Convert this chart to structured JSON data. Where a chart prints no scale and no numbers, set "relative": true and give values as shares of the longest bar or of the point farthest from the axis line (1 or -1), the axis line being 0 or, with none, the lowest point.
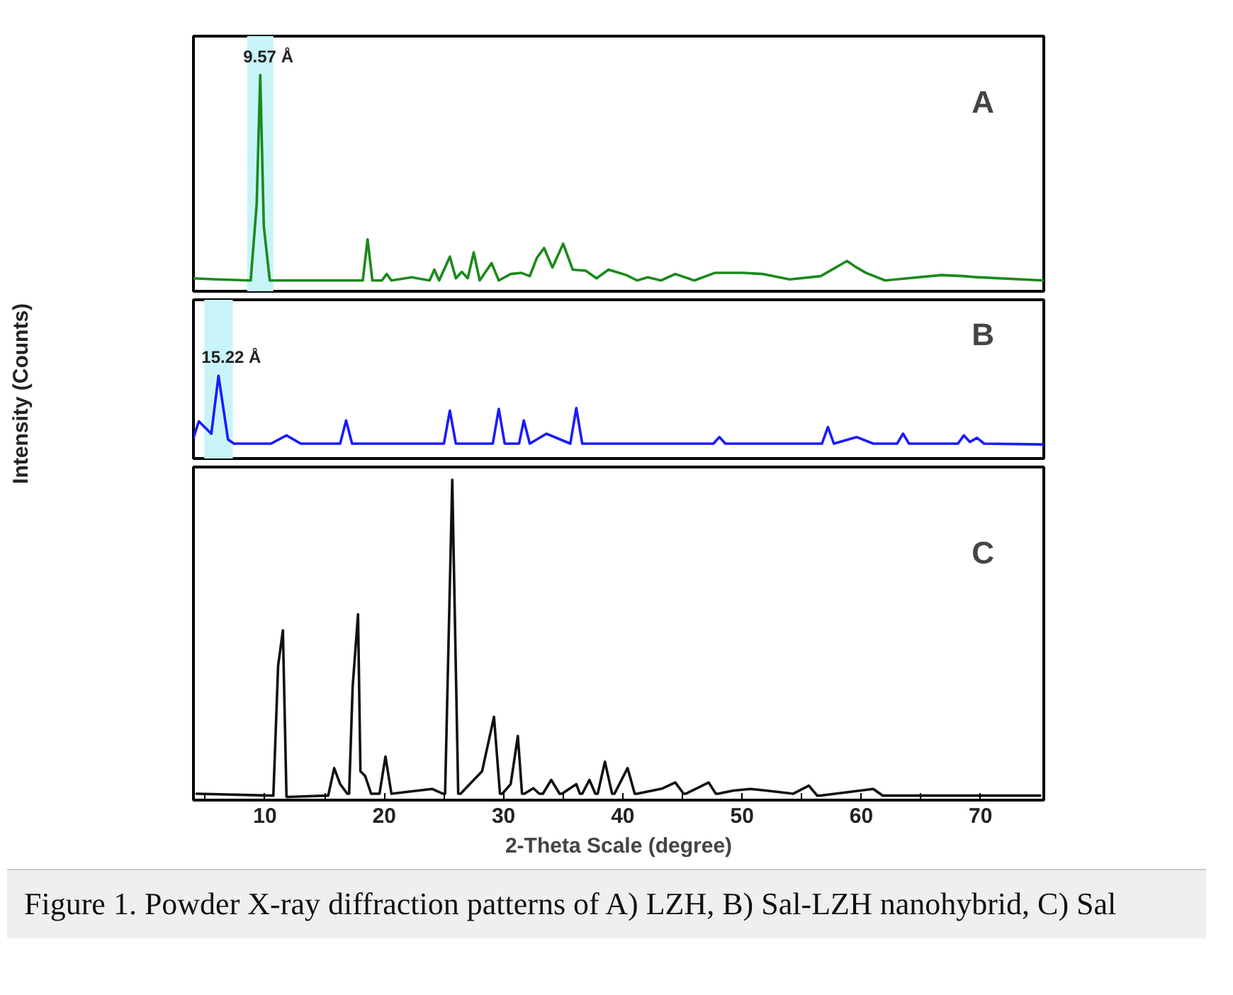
{
  "chart_data": [
    {
      "type": "line",
      "title": "A",
      "relative": true,
      "color": "#1a8a1a",
      "grid": false,
      "tick_labels": false,
      "xlim": [
        4.0,
        75.3
      ],
      "x": [
        4.0,
        6,
        8.8,
        9.3,
        9.6,
        9.9,
        10.4,
        15,
        18.2,
        18.6,
        19.0,
        19.8,
        20.2,
        20.6,
        22.3,
        23.8,
        24.2,
        24.6,
        25.5,
        26.0,
        26.5,
        27.0,
        27.5,
        28.0,
        29.0,
        29.6,
        30.6,
        31.5,
        32.2,
        32.8,
        33.4,
        34.1,
        35.0,
        35.8,
        36.9,
        37.8,
        38.8,
        40.3,
        41.2,
        42.1,
        43.2,
        44.4,
        46.0,
        47.7,
        50.1,
        51.7,
        54,
        56.6,
        58.8,
        59.6,
        60.4,
        62,
        66.7,
        68.6,
        69.7,
        75.3
      ],
      "values": [
        0.06,
        0.055,
        0.05,
        0.4,
        1.0,
        0.3,
        0.05,
        0.05,
        0.05,
        0.24,
        0.05,
        0.05,
        0.08,
        0.05,
        0.065,
        0.05,
        0.1,
        0.05,
        0.16,
        0.06,
        0.09,
        0.06,
        0.18,
        0.05,
        0.13,
        0.05,
        0.08,
        0.085,
        0.07,
        0.155,
        0.2,
        0.11,
        0.22,
        0.1,
        0.095,
        0.06,
        0.1,
        0.075,
        0.05,
        0.065,
        0.05,
        0.08,
        0.05,
        0.085,
        0.085,
        0.08,
        0.055,
        0.07,
        0.14,
        0.11,
        0.085,
        0.05,
        0.075,
        0.07,
        0.065,
        0.05
      ],
      "annotations": [
        {
          "text": "9.57 Å",
          "x": 9.6,
          "y": 1.0
        }
      ],
      "bands": [
        {
          "axis": "x",
          "from": 8.5,
          "to": 10.7,
          "color": "#c8f4f8"
        }
      ]
    },
    {
      "type": "line",
      "title": "B",
      "relative": true,
      "color": "#1a1aff",
      "grid": false,
      "tick_labels": false,
      "xlim": [
        4.0,
        75.3
      ],
      "ylabel": "Intensity (Counts)",
      "x": [
        4.0,
        4.45,
        5.5,
        6.1,
        6.9,
        7.4,
        10.5,
        11.8,
        13,
        16.3,
        16.8,
        17.3,
        25.0,
        25.5,
        26.0,
        29.1,
        29.6,
        30.1,
        31.3,
        31.7,
        32.2,
        33.6,
        35.6,
        36.1,
        36.6,
        47.6,
        48.1,
        48.6,
        56.7,
        57.2,
        57.7,
        59.6,
        61,
        63.0,
        63.5,
        64.0,
        68.1,
        68.6,
        69.1,
        69.7,
        70.3,
        75.3
      ],
      "values": [
        0.25,
        0.45,
        0.3,
        1.0,
        0.23,
        0.18,
        0.18,
        0.28,
        0.18,
        0.18,
        0.46,
        0.18,
        0.18,
        0.58,
        0.18,
        0.18,
        0.6,
        0.18,
        0.18,
        0.46,
        0.18,
        0.3,
        0.18,
        0.61,
        0.18,
        0.18,
        0.26,
        0.18,
        0.18,
        0.38,
        0.18,
        0.26,
        0.18,
        0.18,
        0.3,
        0.18,
        0.18,
        0.28,
        0.2,
        0.25,
        0.18,
        0.17
      ],
      "annotations": [
        {
          "text": "15.22 Å",
          "x": 6.1,
          "y": 1.0
        }
      ],
      "bands": [
        {
          "axis": "x",
          "from": 4.9,
          "to": 7.3,
          "color": "#c8f4f8"
        }
      ]
    },
    {
      "type": "line",
      "title": "C",
      "relative": true,
      "color": "#111111",
      "grid": false,
      "tick_labels": "x",
      "xlim": [
        4.0,
        75.3
      ],
      "xlabel": "2-Theta Scale (degree)",
      "xticks": [
        {
          "value": 5,
          "label": null
        },
        10,
        {
          "value": 15,
          "label": null
        },
        20,
        {
          "value": 25,
          "label": null
        },
        30,
        {
          "value": 35,
          "label": null
        },
        40,
        {
          "value": 45,
          "label": null
        },
        50,
        {
          "value": 55,
          "label": null
        },
        60,
        {
          "value": 65,
          "label": null
        },
        70
      ],
      "x": [
        4.25,
        10.6,
        10.7,
        11.1,
        11.5,
        11.8,
        11.95,
        15.2,
        15.3,
        15.8,
        16.3,
        16.9,
        17.05,
        17.35,
        17.8,
        18.0,
        18.4,
        18.9,
        19.6,
        20.1,
        20.6,
        24.0,
        24.9,
        25.1,
        25.7,
        26.2,
        26.4,
        28.2,
        29.2,
        29.7,
        29.9,
        30.6,
        31.2,
        31.55,
        31.75,
        32.5,
        33.0,
        33.3,
        34.0,
        34.7,
        34.9,
        36.1,
        36.4,
        36.6,
        37.2,
        37.7,
        37.9,
        38.5,
        39.1,
        39.3,
        40.4,
        41.0,
        41.2,
        43.3,
        44.4,
        45.1,
        45.3,
        47.2,
        47.8,
        48.0,
        49.3,
        50.7,
        52.0,
        54.3,
        55.6,
        56.3,
        56.5,
        61.0,
        61.8,
        62.0,
        75.0
      ],
      "values": [
        0.02,
        0.014,
        0.014,
        0.42,
        0.53,
        0.01,
        0.01,
        0.014,
        0.014,
        0.1,
        0.05,
        0.02,
        0.02,
        0.355,
        0.58,
        0.09,
        0.075,
        0.02,
        0.02,
        0.136,
        0.02,
        0.035,
        0.02,
        0.02,
        1.0,
        0.02,
        0.02,
        0.09,
        0.26,
        0.02,
        0.02,
        0.05,
        0.2,
        0.02,
        0.02,
        0.037,
        0.02,
        0.02,
        0.063,
        0.02,
        0.02,
        0.05,
        0.02,
        0.02,
        0.063,
        0.02,
        0.02,
        0.12,
        0.02,
        0.02,
        0.1,
        0.02,
        0.02,
        0.036,
        0.055,
        0.02,
        0.02,
        0.055,
        0.02,
        0.02,
        0.03,
        0.035,
        0.03,
        0.02,
        0.045,
        0.014,
        0.014,
        0.035,
        0.014,
        0.014,
        0.014
      ],
      "annotations": [
        "Figure 1. Powder X-ray diffraction patterns of A) LZH, B) Sal-LZH nanohybrid, C) Sal"
      ]
    }
  ]
}
